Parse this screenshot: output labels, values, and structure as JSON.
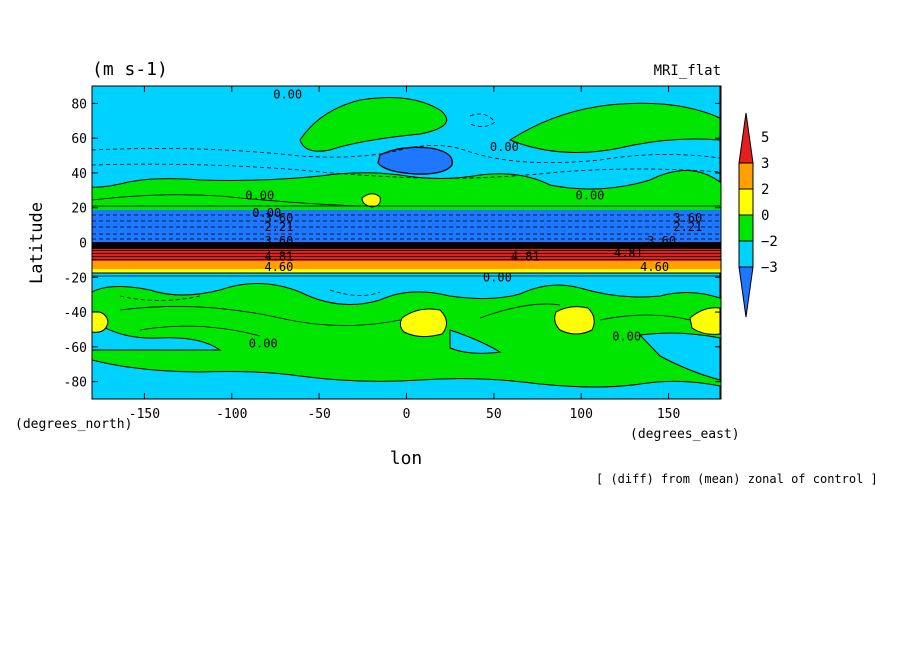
{
  "chart_data": {
    "type": "heatmap",
    "units_label": "(m s-1)",
    "model_label": "MRI_flat",
    "xlabel": "lon",
    "ylabel": "Latitude",
    "x_units": "(degrees_east)",
    "y_units": "(degrees_north)",
    "footnote": "[ (diff) from (mean) zonal of control ]",
    "xlim": [
      -180,
      180
    ],
    "ylim": [
      -90,
      90
    ],
    "x_ticks": [
      -150,
      -100,
      -50,
      0,
      50,
      100,
      150
    ],
    "y_ticks": [
      80,
      60,
      40,
      20,
      0,
      -20,
      -40,
      -60,
      -80
    ],
    "colorbar": {
      "levels": [
        -3,
        -2,
        0,
        2,
        3,
        5
      ],
      "colors": [
        "#1e78ff",
        "#00d2ff",
        "#00e600",
        "#ffff00",
        "#ffa000",
        "#e61e1e"
      ],
      "extend": "both"
    },
    "contour_labels": [
      {
        "text": "0.00",
        "lon": -68,
        "lat": 85
      },
      {
        "text": "0.00",
        "lon": 56,
        "lat": 55
      },
      {
        "text": "0.00",
        "lon": -84,
        "lat": 27
      },
      {
        "text": "0.00",
        "lon": 105,
        "lat": 27
      },
      {
        "text": "0.00",
        "lon": -80,
        "lat": 17
      },
      {
        "text": "3.60",
        "lon": -73,
        "lat": 14
      },
      {
        "text": "3.60",
        "lon": 161,
        "lat": 14
      },
      {
        "text": "2.21",
        "lon": -73,
        "lat": 9
      },
      {
        "text": "2.21",
        "lon": 161,
        "lat": 9
      },
      {
        "text": "3.60",
        "lon": -73,
        "lat": 1
      },
      {
        "text": "3.60",
        "lon": 146,
        "lat": 1
      },
      {
        "text": "4.81",
        "lon": -73,
        "lat": -8
      },
      {
        "text": "4.81",
        "lon": 68,
        "lat": -8
      },
      {
        "text": "4.81",
        "lon": 127,
        "lat": -6
      },
      {
        "text": "4.60",
        "lon": -73,
        "lat": -14
      },
      {
        "text": "4.60",
        "lon": 142,
        "lat": -14
      },
      {
        "text": "0.00",
        "lon": 52,
        "lat": -20
      },
      {
        "text": "0.00",
        "lon": -82,
        "lat": -58
      },
      {
        "text": "0.00",
        "lon": 126,
        "lat": -54
      }
    ]
  }
}
